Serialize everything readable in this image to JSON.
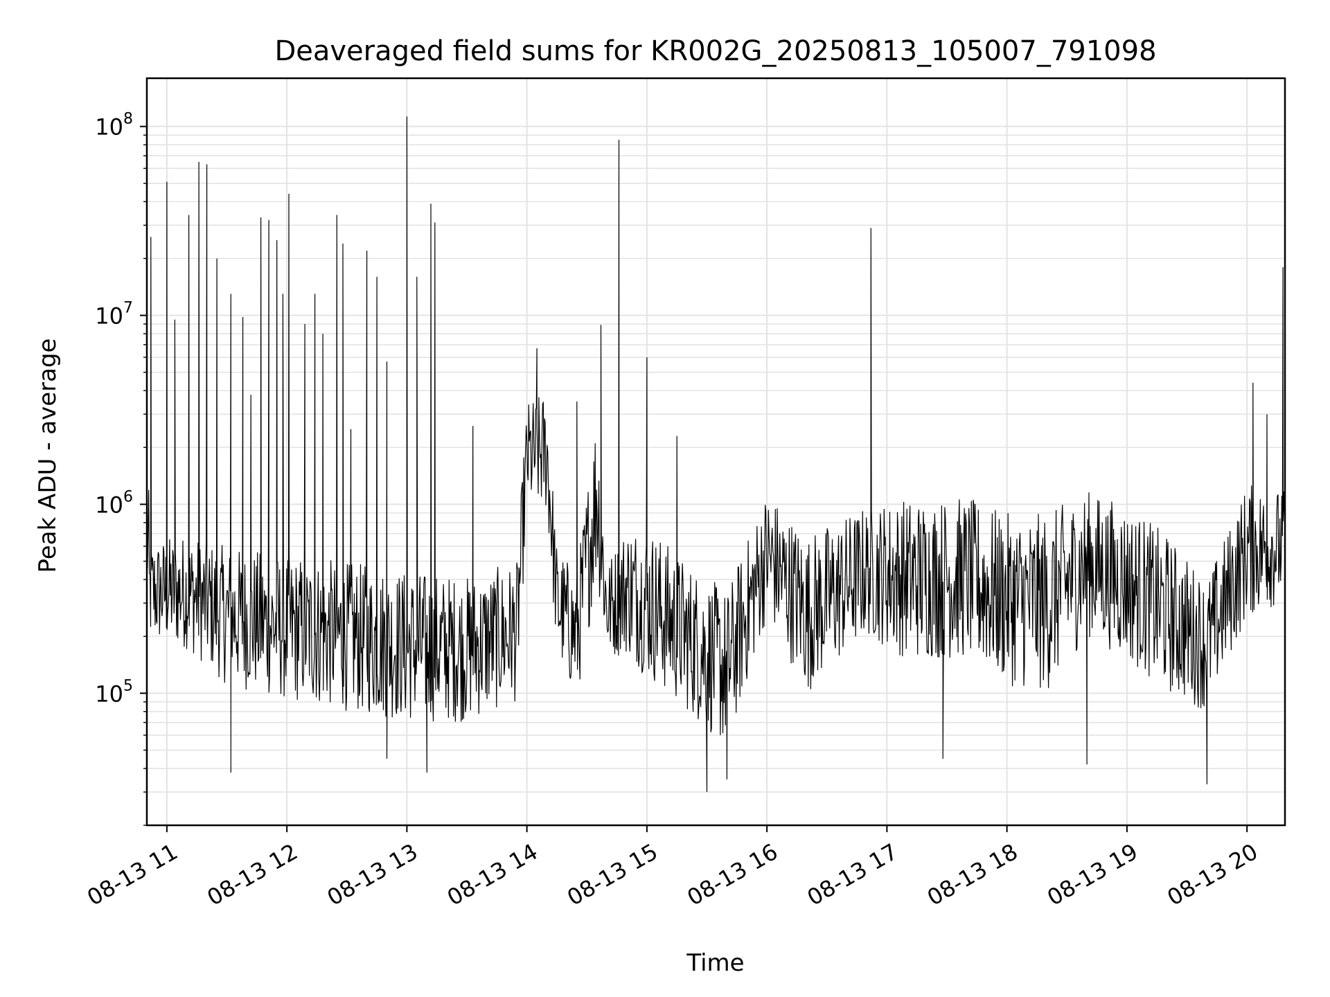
{
  "chart_data": {
    "type": "line",
    "title": "Deaveraged field sums for KR002G_20250813_105007_791098",
    "xlabel": "Time",
    "ylabel": "Peak ADU - average",
    "yscale": "log",
    "ylim": [
      20000,
      180000000
    ],
    "xlim": [
      "08-13 10:50",
      "08-13 20:19"
    ],
    "grid": "on (major and minor, light gray)",
    "line_color": "#000000",
    "x_ticks": [
      "08-13 11",
      "08-13 12",
      "08-13 13",
      "08-13 14",
      "08-13 15",
      "08-13 16",
      "08-13 17",
      "08-13 18",
      "08-13 19",
      "08-13 20"
    ],
    "y_ticks": [
      {
        "base": "10",
        "exp": "5"
      },
      {
        "base": "10",
        "exp": "6"
      },
      {
        "base": "10",
        "exp": "7"
      },
      {
        "base": "10",
        "exp": "8"
      }
    ],
    "series": [
      {
        "values_desc": "baseline envelope (time, typical value, lower band, upper band)",
        "baseline": [
          [
            "08-13 10:51",
            400000,
            180000,
            650000
          ],
          [
            "08-13 11:10",
            380000,
            170000,
            700000
          ],
          [
            "08-13 11:30",
            260000,
            110000,
            600000
          ],
          [
            "08-13 12:00",
            230000,
            90000,
            550000
          ],
          [
            "08-13 12:30",
            220000,
            80000,
            500000
          ],
          [
            "08-13 13:00",
            210000,
            70000,
            450000
          ],
          [
            "08-13 13:30",
            190000,
            70000,
            420000
          ],
          [
            "08-13 13:55",
            220000,
            90000,
            500000
          ],
          [
            "08-13 14:00",
            1800000,
            900000,
            3500000
          ],
          [
            "08-13 14:10",
            1900000,
            900000,
            4000000
          ],
          [
            "08-13 14:15",
            300000,
            150000,
            600000
          ],
          [
            "08-13 14:25",
            220000,
            90000,
            450000
          ],
          [
            "08-13 14:35",
            1800000,
            400000,
            3500000
          ],
          [
            "08-13 14:40",
            300000,
            150000,
            500000
          ],
          [
            "08-13 14:50",
            350000,
            160000,
            800000
          ],
          [
            "08-13 15:00",
            320000,
            120000,
            800000
          ],
          [
            "08-13 15:20",
            200000,
            80000,
            500000
          ],
          [
            "08-13 15:40",
            150000,
            50000,
            350000
          ],
          [
            "08-13 16:00",
            600000,
            250000,
            1200000
          ],
          [
            "08-13 16:20",
            280000,
            100000,
            700000
          ],
          [
            "08-13 16:50",
            500000,
            200000,
            1000000
          ],
          [
            "08-13 17:10",
            400000,
            150000,
            1100000
          ],
          [
            "08-13 17:40",
            450000,
            150000,
            1100000
          ],
          [
            "08-13 18:00",
            350000,
            110000,
            900000
          ],
          [
            "08-13 18:20",
            300000,
            100000,
            900000
          ],
          [
            "08-13 18:40",
            500000,
            200000,
            1200000
          ],
          [
            "08-13 19:00",
            400000,
            150000,
            1000000
          ],
          [
            "08-13 19:20",
            280000,
            100000,
            700000
          ],
          [
            "08-13 19:40",
            180000,
            80000,
            400000
          ],
          [
            "08-13 20:00",
            600000,
            250000,
            1300000
          ],
          [
            "08-13 20:19",
            700000,
            300000,
            1200000
          ]
        ],
        "spikes": [
          [
            "08-13 10:52",
            26000000
          ],
          [
            "08-13 11:00",
            51000000
          ],
          [
            "08-13 11:04",
            9500000
          ],
          [
            "08-13 11:11",
            34000000
          ],
          [
            "08-13 11:16",
            65000000
          ],
          [
            "08-13 11:20",
            63000000
          ],
          [
            "08-13 11:25",
            20000000
          ],
          [
            "08-13 11:32",
            13000000
          ],
          [
            "08-13 11:38",
            9800000
          ],
          [
            "08-13 11:42",
            3800000
          ],
          [
            "08-13 11:47",
            33000000
          ],
          [
            "08-13 11:51",
            32000000
          ],
          [
            "08-13 11:55",
            25000000
          ],
          [
            "08-13 11:58",
            13000000
          ],
          [
            "08-13 12:01",
            44000000
          ],
          [
            "08-13 12:09",
            9000000
          ],
          [
            "08-13 12:14",
            13000000
          ],
          [
            "08-13 12:18",
            8000000
          ],
          [
            "08-13 12:25",
            34000000
          ],
          [
            "08-13 12:28",
            24000000
          ],
          [
            "08-13 12:32",
            2500000
          ],
          [
            "08-13 12:40",
            22000000
          ],
          [
            "08-13 12:45",
            16000000
          ],
          [
            "08-13 12:50",
            5700000
          ],
          [
            "08-13 13:14",
            31000000
          ],
          [
            "08-13 13:05",
            16000000
          ],
          [
            "08-13 13:12",
            39000000
          ],
          [
            "08-13 13:00",
            113000000
          ],
          [
            "08-13 13:33",
            2600000
          ],
          [
            "08-13 14:05",
            6700000
          ],
          [
            "08-13 14:25",
            3500000
          ],
          [
            "08-13 14:37",
            8900000
          ],
          [
            "08-13 14:46",
            85000000
          ],
          [
            "08-13 15:00",
            6000000
          ],
          [
            "08-13 15:15",
            2300000
          ],
          [
            "08-13 16:52",
            29000000
          ],
          [
            "08-13 20:03",
            4400000
          ],
          [
            "08-13 20:10",
            3000000
          ],
          [
            "08-13 20:18",
            18000000
          ]
        ],
        "dips": [
          [
            "08-13 11:32",
            38000
          ],
          [
            "08-13 12:50",
            45000
          ],
          [
            "08-13 13:10",
            38000
          ],
          [
            "08-13 15:30",
            30000
          ],
          [
            "08-13 15:40",
            35000
          ],
          [
            "08-13 17:28",
            45000
          ],
          [
            "08-13 18:40",
            42000
          ],
          [
            "08-13 19:40",
            33000
          ]
        ]
      }
    ]
  }
}
